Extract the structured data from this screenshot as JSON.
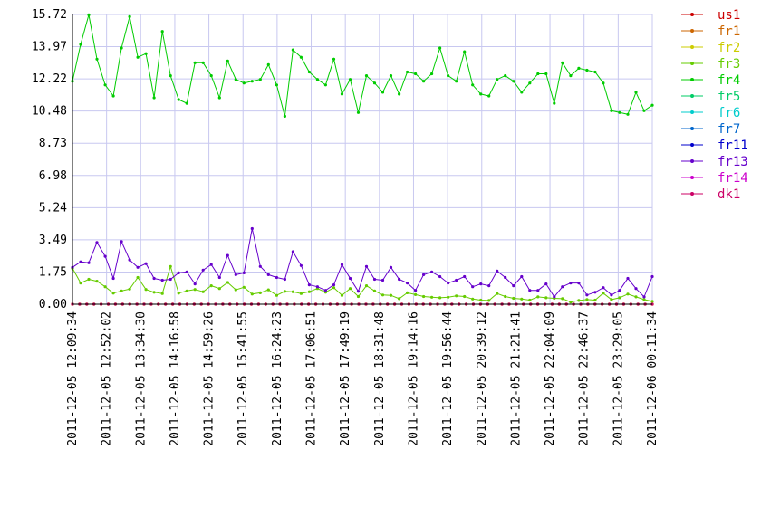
{
  "chart_data": {
    "type": "line",
    "title": "",
    "xlabel": "",
    "ylabel": "",
    "ylim": [
      0,
      15.72
    ],
    "y_ticks": [
      "0.00",
      "1.75",
      "3.49",
      "5.24",
      "6.98",
      "8.73",
      "10.48",
      "12.22",
      "13.97",
      "15.72"
    ],
    "x_ticks": [
      "2011-12-05 12:09:34",
      "2011-12-05 12:52:02",
      "2011-12-05 13:34:30",
      "2011-12-05 14:16:58",
      "2011-12-05 14:59:26",
      "2011-12-05 15:41:55",
      "2011-12-05 16:24:23",
      "2011-12-05 17:06:51",
      "2011-12-05 17:49:19",
      "2011-12-05 18:31:48",
      "2011-12-05 19:14:16",
      "2011-12-05 19:56:44",
      "2011-12-05 20:39:12",
      "2011-12-05 21:21:41",
      "2011-12-05 22:04:09",
      "2011-12-05 22:46:37",
      "2011-12-05 23:29:05",
      "2011-12-06 00:11:34"
    ],
    "grid": true,
    "legend_position": "right",
    "series": [
      {
        "name": "us1",
        "color": "#cc0000",
        "values": [
          0,
          0,
          0,
          0,
          0,
          0,
          0,
          0,
          0,
          0,
          0,
          0,
          0,
          0,
          0,
          0,
          0,
          0,
          0,
          0,
          0,
          0,
          0,
          0,
          0,
          0,
          0,
          0,
          0,
          0,
          0,
          0,
          0,
          0,
          0,
          0,
          0,
          0,
          0,
          0,
          0,
          0,
          0,
          0,
          0,
          0,
          0,
          0,
          0,
          0,
          0,
          0,
          0,
          0,
          0,
          0,
          0,
          0,
          0,
          0,
          0,
          0,
          0,
          0,
          0,
          0,
          0,
          0,
          0,
          0,
          0,
          0,
          0,
          0,
          0,
          0,
          0,
          0,
          0,
          0,
          0,
          0
        ]
      },
      {
        "name": "fr1",
        "color": "#cc6600",
        "values": [
          0,
          0,
          0,
          0,
          0,
          0,
          0,
          0,
          0,
          0,
          0,
          0,
          0,
          0,
          0,
          0,
          0,
          0,
          0,
          0,
          0,
          0,
          0,
          0,
          0,
          0,
          0,
          0,
          0,
          0,
          0,
          0,
          0,
          0,
          0,
          0,
          0,
          0,
          0,
          0,
          0,
          0,
          0,
          0,
          0,
          0,
          0,
          0,
          0,
          0,
          0,
          0,
          0,
          0,
          0,
          0,
          0,
          0,
          0,
          0,
          0,
          0,
          0,
          0,
          0,
          0,
          0,
          0,
          0,
          0,
          0,
          0,
          0,
          0,
          0,
          0,
          0,
          0,
          0,
          0,
          0,
          0
        ]
      },
      {
        "name": "fr2",
        "color": "#cccc00",
        "values": [
          0,
          0,
          0,
          0,
          0,
          0,
          0,
          0,
          0,
          0,
          0,
          0,
          0,
          0,
          0,
          0,
          0,
          0,
          0,
          0,
          0,
          0,
          0,
          0,
          0,
          0,
          0,
          0,
          0,
          0,
          0,
          0,
          0,
          0,
          0,
          0,
          0,
          0,
          0,
          0,
          0,
          0,
          0,
          0,
          0,
          0,
          0,
          0,
          0,
          0,
          0,
          0,
          0,
          0,
          0,
          0,
          0,
          0,
          0,
          0,
          0,
          0,
          0,
          0,
          0,
          0,
          0,
          0,
          0,
          0,
          0,
          0,
          0,
          0,
          0,
          0,
          0,
          0,
          0,
          0,
          0,
          0
        ]
      },
      {
        "name": "fr3",
        "color": "#66cc00",
        "values": [
          1.95,
          1.15,
          1.35,
          1.25,
          0.95,
          0.6,
          0.72,
          0.82,
          1.45,
          0.8,
          0.65,
          0.58,
          2.05,
          0.6,
          0.72,
          0.8,
          0.68,
          1.0,
          0.85,
          1.18,
          0.78,
          0.92,
          0.55,
          0.62,
          0.78,
          0.48,
          0.7,
          0.68,
          0.58,
          0.68,
          0.85,
          0.65,
          0.9,
          0.48,
          0.85,
          0.42,
          1.0,
          0.72,
          0.5,
          0.48,
          0.3,
          0.62,
          0.52,
          0.42,
          0.38,
          0.35,
          0.38,
          0.45,
          0.42,
          0.28,
          0.22,
          0.2,
          0.58,
          0.42,
          0.32,
          0.28,
          0.22,
          0.4,
          0.35,
          0.32,
          0.3,
          0.12,
          0.2,
          0.25,
          0.22,
          0.6,
          0.25,
          0.35,
          0.55,
          0.4,
          0.25,
          0.15
        ]
      },
      {
        "name": "fr4",
        "color": "#00cc00",
        "values": [
          12.1,
          14.1,
          15.7,
          13.3,
          11.9,
          11.3,
          13.9,
          15.6,
          13.4,
          13.6,
          11.2,
          14.8,
          12.4,
          11.1,
          10.9,
          13.1,
          13.1,
          12.4,
          11.2,
          13.2,
          12.2,
          12.0,
          12.1,
          12.2,
          13.0,
          11.9,
          10.2,
          13.8,
          13.4,
          12.6,
          12.2,
          11.9,
          13.3,
          11.4,
          12.2,
          10.4,
          12.4,
          12.0,
          11.5,
          12.4,
          11.4,
          12.6,
          12.5,
          12.1,
          12.5,
          13.9,
          12.4,
          12.1,
          13.7,
          11.9,
          11.4,
          11.3,
          12.2,
          12.4,
          12.1,
          11.5,
          12.0,
          12.5,
          12.5,
          10.9,
          13.1,
          12.4,
          12.8,
          12.7,
          12.6,
          12.0,
          10.5,
          10.4,
          10.3,
          11.5,
          10.5,
          10.8
        ]
      },
      {
        "name": "fr5",
        "color": "#00cc66",
        "values": []
      },
      {
        "name": "fr6",
        "color": "#00cccc",
        "values": []
      },
      {
        "name": "fr7",
        "color": "#0066cc",
        "values": []
      },
      {
        "name": "fr11",
        "color": "#0000cc",
        "values": []
      },
      {
        "name": "fr13",
        "color": "#6600cc",
        "values": [
          2.0,
          2.3,
          2.25,
          3.35,
          2.6,
          1.4,
          3.4,
          2.4,
          2.0,
          2.2,
          1.4,
          1.3,
          1.35,
          1.7,
          1.75,
          1.1,
          1.85,
          2.15,
          1.45,
          2.65,
          1.6,
          1.7,
          4.1,
          2.05,
          1.6,
          1.45,
          1.35,
          2.85,
          2.1,
          1.05,
          0.95,
          0.75,
          1.05,
          2.15,
          1.4,
          0.7,
          2.05,
          1.35,
          1.3,
          2.0,
          1.35,
          1.15,
          0.75,
          1.6,
          1.75,
          1.5,
          1.15,
          1.3,
          1.5,
          0.95,
          1.1,
          1.0,
          1.8,
          1.45,
          1.0,
          1.5,
          0.75,
          0.75,
          1.1,
          0.4,
          0.95,
          1.15,
          1.15,
          0.5,
          0.65,
          0.9,
          0.5,
          0.75,
          1.4,
          0.85,
          0.4,
          1.5
        ]
      },
      {
        "name": "fr14",
        "color": "#cc00cc",
        "values": []
      },
      {
        "name": "dk1",
        "color": "#cc0066",
        "values": [
          0,
          0,
          0,
          0,
          0,
          0,
          0,
          0,
          0,
          0,
          0,
          0,
          0,
          0,
          0,
          0,
          0,
          0,
          0,
          0,
          0,
          0,
          0,
          0,
          0,
          0,
          0,
          0,
          0,
          0,
          0,
          0,
          0,
          0,
          0,
          0,
          0,
          0,
          0,
          0,
          0,
          0,
          0,
          0,
          0,
          0,
          0,
          0,
          0,
          0,
          0,
          0,
          0,
          0,
          0,
          0,
          0,
          0,
          0,
          0,
          0,
          0,
          0,
          0,
          0,
          0,
          0,
          0,
          0,
          0,
          0,
          0,
          0,
          0,
          0,
          0,
          0,
          0,
          0,
          0,
          0,
          0
        ]
      }
    ]
  }
}
